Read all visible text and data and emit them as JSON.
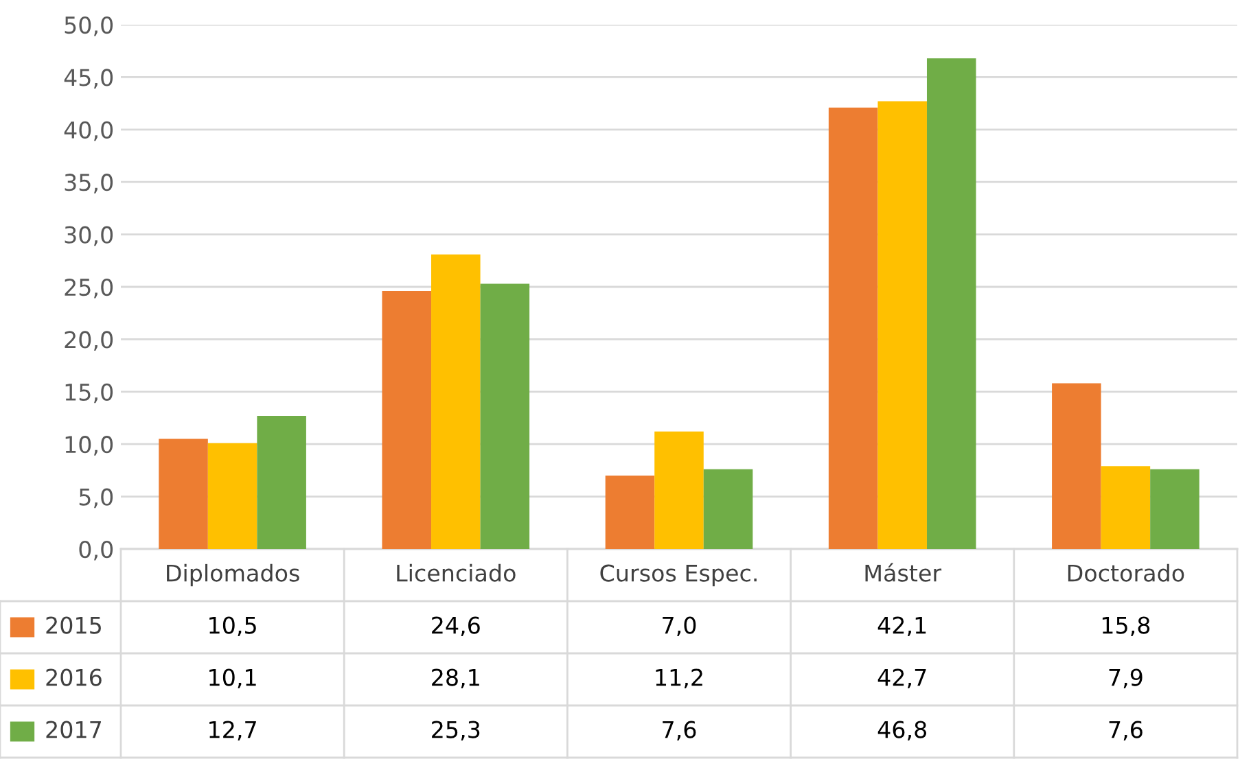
{
  "chart_data": {
    "type": "bar",
    "categories": [
      "Diplomados",
      "Licenciado",
      "Cursos Espec.",
      "Máster",
      "Doctorado"
    ],
    "series": [
      {
        "name": "2015",
        "color": "#ed7d31",
        "values": [
          10.5,
          24.6,
          7.0,
          42.1,
          15.8
        ],
        "value_labels": [
          "10,5",
          "24,6",
          "7,0",
          "42,1",
          "15,8"
        ]
      },
      {
        "name": "2016",
        "color": "#ffc000",
        "values": [
          10.1,
          28.1,
          11.2,
          42.7,
          7.9
        ],
        "value_labels": [
          "10,1",
          "28,1",
          "11,2",
          "42,7",
          "7,9"
        ]
      },
      {
        "name": "2017",
        "color": "#70ad47",
        "values": [
          12.7,
          25.3,
          7.6,
          46.8,
          7.6
        ],
        "value_labels": [
          "12,7",
          "25,3",
          "7,6",
          "46,8",
          "7,6"
        ]
      }
    ],
    "ylim": [
      0,
      50
    ],
    "yticks": [
      {
        "value": 0,
        "label": "0,0"
      },
      {
        "value": 5,
        "label": "5,0"
      },
      {
        "value": 10,
        "label": "10,0"
      },
      {
        "value": 15,
        "label": "15,0"
      },
      {
        "value": 20,
        "label": "20,0"
      },
      {
        "value": 25,
        "label": "25,0"
      },
      {
        "value": 30,
        "label": "30,0"
      },
      {
        "value": 35,
        "label": "35,0"
      },
      {
        "value": 40,
        "label": "40,0"
      },
      {
        "value": 45,
        "label": "45,0"
      },
      {
        "value": 50,
        "label": "50,0"
      }
    ],
    "grid": "y",
    "legend": "bottom"
  }
}
